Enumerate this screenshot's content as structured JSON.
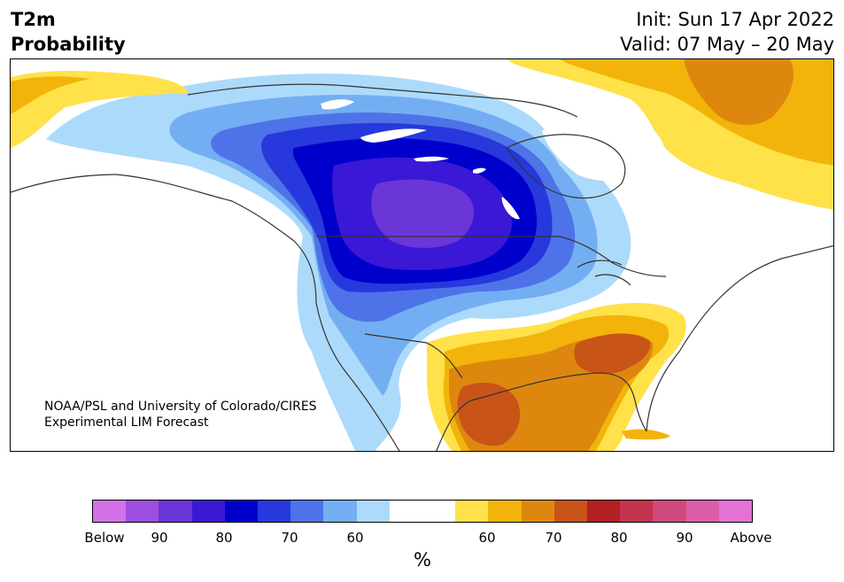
{
  "header": {
    "title_line1": "T2m",
    "title_line2": "Probability",
    "init": "Init: Sun 17 Apr 2022",
    "valid": "Valid: 07 May – 20 May"
  },
  "credit": {
    "line1": "NOAA/PSL and University of Colorado/CIRES",
    "line2": "Experimental LIM Forecast"
  },
  "colorbar": {
    "unit": "%",
    "colors": [
      "#d371e6",
      "#9c4fe0",
      "#6a36d8",
      "#3a18d6",
      "#0000cc",
      "#2738dc",
      "#4e73e8",
      "#74aef2",
      "#acdafb",
      "#ffffff",
      "#ffffff",
      "#ffe14a",
      "#f2b40a",
      "#de870f",
      "#c85418",
      "#b31f22",
      "#c2344e",
      "#cf4a7c",
      "#dc5da8",
      "#e471d3"
    ],
    "labels": [
      "Below",
      "90",
      "80",
      "70",
      "60",
      "60",
      "70",
      "80",
      "90",
      "Above"
    ]
  },
  "map": {
    "region": "North America",
    "colors": {
      "below_60": "#acdafb",
      "below_65": "#74aef2",
      "below_70": "#4e73e8",
      "below_75": "#2738dc",
      "below_80": "#0000cc",
      "below_85": "#3a18d6",
      "below_90": "#6a36d8",
      "above_60": "#ffe14a",
      "above_65": "#f2b40a",
      "above_70": "#de870f",
      "above_75": "#c85418",
      "above_80": "#b31f22",
      "land_outline": "#333333"
    }
  }
}
